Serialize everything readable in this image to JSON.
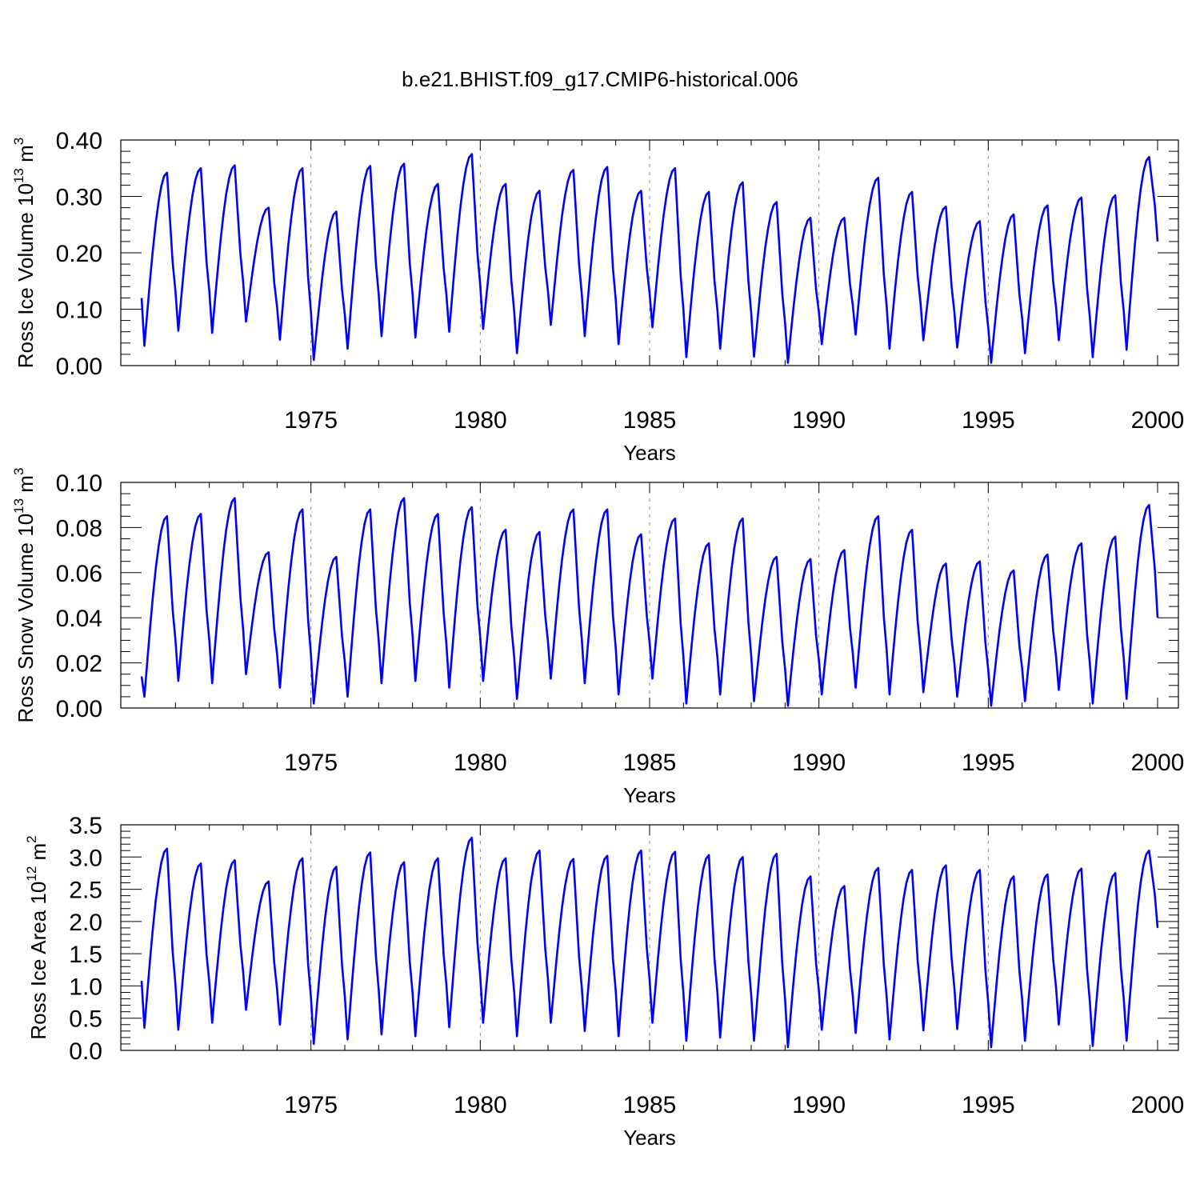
{
  "title": "b.e21.BHIST.f09_g17.CMIP6-historical.006",
  "line_color": "#0000ff",
  "chart_data": [
    {
      "type": "line",
      "name": "ross-ice-volume",
      "title": "",
      "xlabel": "Years",
      "ylabel": "Ross Ice Volume 10",
      "ylabel_exp": "13",
      "ylabel_unit": " m",
      "ylabel_unit_exp": "3",
      "xlim": [
        1970,
        2000
      ],
      "xticks": [
        1975,
        1980,
        1985,
        1990,
        1995,
        2000
      ],
      "ylim": [
        0.0,
        0.4
      ],
      "yticks": [
        0.0,
        0.1,
        0.2,
        0.3,
        0.4
      ],
      "ytick_labels": [
        "0.00",
        "0.10",
        "0.20",
        "0.30",
        "0.40"
      ],
      "ymin_step": 0.02,
      "minima": [
        0.035,
        0.062,
        0.058,
        0.078,
        0.046,
        0.01,
        0.03,
        0.052,
        0.05,
        0.06,
        0.065,
        0.022,
        0.072,
        0.052,
        0.038,
        0.068,
        0.015,
        0.03,
        0.016,
        0.005,
        0.038,
        0.055,
        0.03,
        0.045,
        0.032,
        0.005,
        0.022,
        0.045,
        0.015,
        0.028
      ],
      "maxima": [
        0.342,
        0.35,
        0.355,
        0.28,
        0.35,
        0.273,
        0.354,
        0.358,
        0.322,
        0.375,
        0.322,
        0.31,
        0.347,
        0.352,
        0.31,
        0.35,
        0.308,
        0.325,
        0.29,
        0.262,
        0.262,
        0.333,
        0.308,
        0.282,
        0.256,
        0.268,
        0.284,
        0.298,
        0.302,
        0.37
      ],
      "start_value": 0.12,
      "end_value": 0.22
    },
    {
      "type": "line",
      "name": "ross-snow-volume",
      "title": "",
      "xlabel": "Years",
      "ylabel": "Ross Snow Volume 10",
      "ylabel_exp": "13",
      "ylabel_unit": " m",
      "ylabel_unit_exp": "3",
      "xlim": [
        1970,
        2000
      ],
      "xticks": [
        1975,
        1980,
        1985,
        1990,
        1995,
        2000
      ],
      "ylim": [
        0.0,
        0.1
      ],
      "yticks": [
        0.0,
        0.02,
        0.04,
        0.06,
        0.08,
        0.1
      ],
      "ytick_labels": [
        "0.00",
        "0.02",
        "0.04",
        "0.06",
        "0.08",
        "0.10"
      ],
      "ymin_step": 0.005,
      "minima": [
        0.005,
        0.012,
        0.011,
        0.015,
        0.009,
        0.002,
        0.005,
        0.011,
        0.012,
        0.009,
        0.012,
        0.004,
        0.013,
        0.011,
        0.006,
        0.013,
        0.002,
        0.006,
        0.003,
        0.001,
        0.006,
        0.009,
        0.006,
        0.007,
        0.005,
        0.001,
        0.003,
        0.008,
        0.002,
        0.004
      ],
      "maxima": [
        0.085,
        0.086,
        0.093,
        0.069,
        0.088,
        0.067,
        0.088,
        0.093,
        0.086,
        0.089,
        0.079,
        0.078,
        0.088,
        0.088,
        0.077,
        0.084,
        0.073,
        0.084,
        0.067,
        0.066,
        0.07,
        0.085,
        0.079,
        0.064,
        0.065,
        0.061,
        0.068,
        0.073,
        0.076,
        0.09
      ],
      "start_value": 0.014,
      "end_value": 0.04
    },
    {
      "type": "line",
      "name": "ross-ice-area",
      "title": "",
      "xlabel": "Years",
      "ylabel": "Ross Ice Area 10",
      "ylabel_exp": "12",
      "ylabel_unit": " m",
      "ylabel_unit_exp": "2",
      "xlim": [
        1970,
        2000
      ],
      "xticks": [
        1975,
        1980,
        1985,
        1990,
        1995,
        2000
      ],
      "ylim": [
        0.0,
        3.5
      ],
      "yticks": [
        0.0,
        0.5,
        1.0,
        1.5,
        2.0,
        2.5,
        3.0,
        3.5
      ],
      "ytick_labels": [
        "0.0",
        "0.5",
        "1.0",
        "1.5",
        "2.0",
        "2.5",
        "3.0",
        "3.5"
      ],
      "ymin_step": 0.1,
      "minima": [
        0.35,
        0.32,
        0.43,
        0.63,
        0.4,
        0.1,
        0.17,
        0.25,
        0.22,
        0.36,
        0.43,
        0.22,
        0.43,
        0.3,
        0.22,
        0.43,
        0.15,
        0.2,
        0.15,
        0.05,
        0.32,
        0.27,
        0.17,
        0.31,
        0.33,
        0.05,
        0.15,
        0.4,
        0.07,
        0.15
      ],
      "maxima": [
        3.13,
        2.9,
        2.95,
        2.62,
        2.98,
        2.85,
        3.07,
        2.92,
        2.98,
        3.3,
        2.98,
        3.1,
        2.97,
        3.02,
        3.1,
        3.08,
        3.03,
        3.0,
        3.05,
        2.7,
        2.55,
        2.83,
        2.8,
        2.87,
        2.8,
        2.7,
        2.73,
        2.82,
        2.75,
        3.1
      ],
      "start_value": 1.08,
      "end_value": 1.9
    }
  ]
}
